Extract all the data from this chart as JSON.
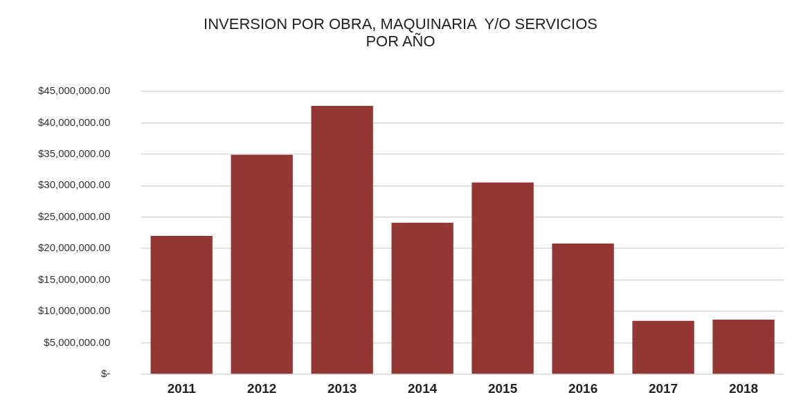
{
  "chart_data": {
    "type": "bar",
    "title": "INVERSION POR OBRA, MAQUINARIA  Y/O SERVICIOS\nPOR AÑO",
    "categories": [
      "2011",
      "2012",
      "2013",
      "2014",
      "2015",
      "2016",
      "2017",
      "2018"
    ],
    "values": [
      22000000,
      34900000,
      42700000,
      24100000,
      30500000,
      20800000,
      8500000,
      8700000
    ],
    "color": "#943634",
    "ylim": [
      0,
      45000000
    ],
    "yticks": [
      {
        "value": 0,
        "label": "$-"
      },
      {
        "value": 5000000,
        "label": "$5,000,000.00"
      },
      {
        "value": 10000000,
        "label": "$10,000,000.00"
      },
      {
        "value": 15000000,
        "label": "$15,000,000.00"
      },
      {
        "value": 20000000,
        "label": "$20,000,000.00"
      },
      {
        "value": 25000000,
        "label": "$25,000,000.00"
      },
      {
        "value": 30000000,
        "label": "$30,000,000.00"
      },
      {
        "value": 35000000,
        "label": "$35,000,000.00"
      },
      {
        "value": 40000000,
        "label": "$40,000,000.00"
      },
      {
        "value": 45000000,
        "label": "$45,000,000.00"
      }
    ],
    "grid": "y",
    "legend": false
  }
}
